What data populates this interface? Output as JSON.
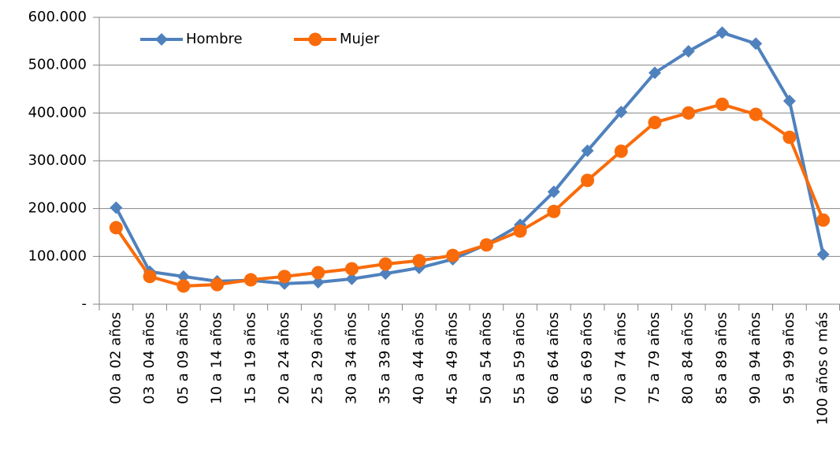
{
  "chart_data": {
    "type": "line",
    "categories": [
      "00 a 02 años",
      "03 a 04 años",
      "05 a 09 años",
      "10 a 14 años",
      "15 a 19 años",
      "20 a 24 años",
      "25 a 29 años",
      "30 a 34 años",
      "35 a 39 años",
      "40 a 44 años",
      "45 a 49 años",
      "50 a 54 años",
      "55 a 59 años",
      "60 a 64 años",
      "65 a 69 años",
      "70 a 74 años",
      "75 a 79 años",
      "80 a 84 años",
      "85 a 89 años",
      "90 a 94 años",
      "95 a 99 años",
      "100 años o más"
    ],
    "series": [
      {
        "name": "Hombre",
        "color": "#4f81bd",
        "marker": "diamond",
        "values": [
          202000,
          68000,
          58000,
          48000,
          50000,
          43000,
          46000,
          53000,
          64000,
          76000,
          94000,
          125000,
          166000,
          235000,
          321000,
          402000,
          484000,
          529000,
          568000,
          545000,
          425000,
          104000
        ]
      },
      {
        "name": "Mujer",
        "color": "#f96b0a",
        "marker": "circle",
        "values": [
          160000,
          58000,
          38000,
          41000,
          51000,
          58000,
          66000,
          74000,
          84000,
          91000,
          102000,
          124000,
          153000,
          194000,
          259000,
          320000,
          380000,
          400000,
          418000,
          397000,
          349000,
          176000
        ]
      }
    ],
    "ylim": [
      0,
      600000
    ],
    "yticks": [
      {
        "value": 0,
        "label": "-"
      },
      {
        "value": 100000,
        "label": "100.000"
      },
      {
        "value": 200000,
        "label": "200.000"
      },
      {
        "value": 300000,
        "label": "300.000"
      },
      {
        "value": 400000,
        "label": "400.000"
      },
      {
        "value": 500000,
        "label": "500.000"
      },
      {
        "value": 600000,
        "label": "600.000"
      }
    ],
    "grid": true,
    "legend": "top-left"
  }
}
